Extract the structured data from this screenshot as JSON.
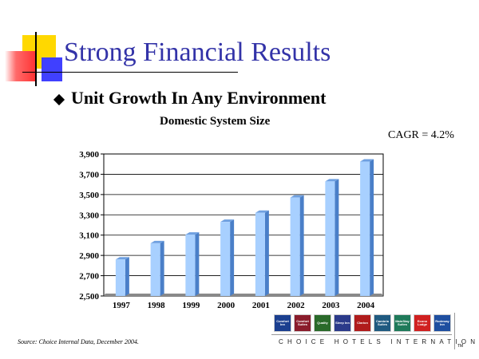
{
  "slide": {
    "title": "Strong Financial Results",
    "bullet": "Unit Growth In Any Environment",
    "cagr": "CAGR = 4.2%",
    "source": "Source: Choice Internal Data, December 2004.",
    "footer_brand": "CHOICE HOTELS INTERNATIONAL",
    "trademark": "TM"
  },
  "logos": [
    {
      "name": "Comfort Inn",
      "color": "#1b3f8f"
    },
    {
      "name": "Comfort Suites",
      "color": "#8a1c2b"
    },
    {
      "name": "Quality",
      "color": "#2a6a2a"
    },
    {
      "name": "Sleep Inn",
      "color": "#2b3a8a"
    },
    {
      "name": "Clarion",
      "color": "#b01c1c"
    },
    {
      "name": "Cambria Suites",
      "color": "#1f5a80"
    },
    {
      "name": "MainStay Suites",
      "color": "#1f7a5a"
    },
    {
      "name": "Econo Lodge",
      "color": "#d02020"
    },
    {
      "name": "Rodeway Inn",
      "color": "#1f4fa0"
    }
  ],
  "colors": {
    "title": "#3333a8",
    "bar_front": "#a8d0ff",
    "bar_side": "#4a7fc8",
    "bar_top": "#6fa0e0",
    "floor": "#8a8a8a"
  },
  "chart_data": {
    "type": "bar",
    "title": "Domestic System Size",
    "categories": [
      "1997",
      "1998",
      "1999",
      "2000",
      "2001",
      "2002",
      "2003",
      "2004"
    ],
    "values": [
      2860,
      3020,
      3105,
      3230,
      3320,
      3470,
      3630,
      3825
    ],
    "ylim": [
      2500,
      3900
    ],
    "yticks": [
      "2,500",
      "2,700",
      "2,900",
      "3,100",
      "3,300",
      "3,500",
      "3,700",
      "3,900"
    ],
    "ytick_values": [
      2500,
      2700,
      2900,
      3100,
      3300,
      3500,
      3700,
      3900
    ],
    "grid": true
  }
}
